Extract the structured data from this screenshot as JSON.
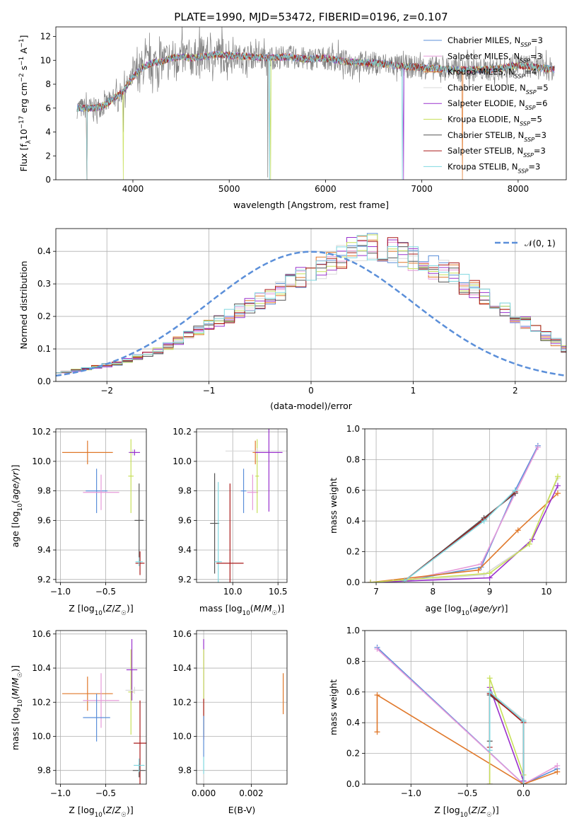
{
  "figure_title": "PLATE=1990, MJD=53472, FIBERID=0196, z=0.107",
  "colors": {
    "Chabrier MILES": "#5b8fd9",
    "Salpeter MILES": "#e69ad9",
    "Kroupa MILES": "#e0782a",
    "Chabrier ELODIE": "#d9d9d9",
    "Salpeter ELODIE": "#9a32cd",
    "Kroupa ELODIE": "#c8e05a",
    "Chabrier STELIB": "#555555",
    "Salpeter STELIB": "#aa1a1a",
    "Kroupa STELIB": "#7fd8e0",
    "data": "#7f7f7f",
    "gaussian": "#5b8fd9"
  },
  "chart_data": [
    {
      "id": "spectrum",
      "type": "line",
      "title": "PLATE=1990, MJD=53472, FIBERID=0196, z=0.107",
      "xlabel": "wavelength [Angstrom, rest frame]",
      "ylabel": "Flux [f_λ10^-17 erg cm^-2 s^-1 A^-1]",
      "xlim": [
        3200,
        8500
      ],
      "ylim": [
        0,
        12.8
      ],
      "xticks": [
        "4000",
        "5000",
        "6000",
        "7000",
        "8000"
      ],
      "yticks": [
        "0",
        "2",
        "4",
        "6",
        "8",
        "10",
        "12"
      ],
      "grid": false,
      "legend_position": "right",
      "continuum": {
        "wavelength": [
          3600,
          3700,
          3800,
          3900,
          4000,
          4100,
          4200,
          4300,
          4400,
          4500,
          4600,
          4700,
          4800,
          4900,
          5000,
          5200,
          5400,
          5600,
          5800,
          6000,
          6200,
          6400,
          6600,
          6800,
          7000,
          7200,
          7400,
          7600,
          7800,
          8000,
          8200,
          8400
        ],
        "flux": [
          6.0,
          6.2,
          6.8,
          7.4,
          8.6,
          9.4,
          9.8,
          9.9,
          10.2,
          10.3,
          10.2,
          10.3,
          10.4,
          10.5,
          10.4,
          10.3,
          10.2,
          10.3,
          10.1,
          10.2,
          9.9,
          9.8,
          9.7,
          9.5,
          9.4,
          9.3,
          9.2,
          9.2,
          9.3,
          9.6,
          9.4,
          9.2
        ]
      },
      "series": [
        {
          "name": "Chabrier MILES",
          "nssp": "3",
          "color": "#5b8fd9"
        },
        {
          "name": "Salpeter MILES",
          "nssp": "3",
          "color": "#e69ad9"
        },
        {
          "name": "Kroupa MILES",
          "nssp": "4",
          "color": "#e0782a"
        },
        {
          "name": "Chabrier ELODIE",
          "nssp": "5",
          "color": "#d9d9d9"
        },
        {
          "name": "Salpeter ELODIE",
          "nssp": "6",
          "color": "#9a32cd"
        },
        {
          "name": "Kroupa ELODIE",
          "nssp": "5",
          "color": "#c8e05a"
        },
        {
          "name": "Chabrier STELIB",
          "nssp": "3",
          "color": "#555555"
        },
        {
          "name": "Salpeter STELIB",
          "nssp": "3",
          "color": "#aa1a1a"
        },
        {
          "name": "Kroupa STELIB",
          "nssp": "3",
          "color": "#7fd8e0"
        }
      ]
    },
    {
      "id": "residuals",
      "type": "line",
      "xlabel": "(data-model)/error",
      "ylabel": "Normed distribution",
      "xlim": [
        -2.5,
        2.5
      ],
      "ylim": [
        0,
        0.47
      ],
      "xticks": [
        "−2",
        "−1",
        "0",
        "1",
        "2"
      ],
      "yticks": [
        "0.0",
        "0.1",
        "0.2",
        "0.3",
        "0.4"
      ],
      "grid": true,
      "legend": "𝒩(0, 1)",
      "legend_position": "top-right",
      "bins_from": -2.55,
      "bin_width": 0.1,
      "profile": [
        0.03,
        0.03,
        0.035,
        0.04,
        0.045,
        0.05,
        0.055,
        0.065,
        0.075,
        0.085,
        0.095,
        0.11,
        0.125,
        0.14,
        0.155,
        0.17,
        0.185,
        0.2,
        0.215,
        0.235,
        0.25,
        0.265,
        0.28,
        0.3,
        0.32,
        0.34,
        0.35,
        0.36,
        0.38,
        0.4,
        0.41,
        0.42,
        0.4,
        0.41,
        0.39,
        0.38,
        0.36,
        0.35,
        0.34,
        0.33,
        0.3,
        0.28,
        0.26,
        0.24,
        0.22,
        0.2,
        0.18,
        0.16,
        0.14,
        0.12,
        0.1,
        0.09,
        0.08,
        0.07,
        0.06,
        0.05,
        0.045,
        0.04,
        0.035,
        0.03,
        0.03
      ]
    },
    {
      "id": "age-vs-z",
      "type": "scatter",
      "xlabel": "Z [log10(Z/Z☉)]",
      "ylabel": "age  [log10(age/yr)]",
      "xlim": [
        -1.05,
        -0.05
      ],
      "ylim": [
        9.18,
        10.22
      ],
      "xticks": [
        "−1.0",
        "−0.5"
      ],
      "yticks": [
        "9.2",
        "9.4",
        "9.6",
        "9.8",
        "10.0",
        "10.2"
      ],
      "grid": true,
      "points": [
        {
          "series": "Kroupa MILES",
          "x": -0.7,
          "xerr": 0.28,
          "y": 10.06,
          "yerr": 0.08
        },
        {
          "series": "Chabrier MILES",
          "x": -0.6,
          "xerr": 0.12,
          "y": 9.8,
          "yerr": 0.15
        },
        {
          "series": "Salpeter MILES",
          "x": -0.55,
          "xerr": 0.2,
          "y": 9.79,
          "yerr": 0.12
        },
        {
          "series": "Kroupa ELODIE",
          "x": -0.22,
          "xerr": 0.03,
          "y": 9.9,
          "yerr": 0.25
        },
        {
          "series": "Chabrier ELODIE",
          "x": -0.2,
          "xerr": 0.05,
          "y": 10.06,
          "yerr": 0.02
        },
        {
          "series": "Salpeter ELODIE",
          "x": -0.18,
          "xerr": 0.06,
          "y": 10.06,
          "yerr": 0.02
        },
        {
          "series": "Chabrier STELIB",
          "x": -0.13,
          "xerr": 0.05,
          "y": 9.6,
          "yerr": 0.25
        },
        {
          "series": "Salpeter STELIB",
          "x": -0.12,
          "xerr": 0.05,
          "y": 9.31,
          "yerr": 0.08
        },
        {
          "series": "Kroupa STELIB",
          "x": -0.13,
          "xerr": 0.04,
          "y": 9.32,
          "yerr": 0.03
        }
      ]
    },
    {
      "id": "age-vs-mass",
      "type": "scatter",
      "xlabel": "mass [log10(M/M☉)]",
      "ylabel": "",
      "xlim": [
        9.6,
        10.6
      ],
      "ylim": [
        9.18,
        10.22
      ],
      "xticks": [
        "10.0",
        "10.5"
      ],
      "yticks": [
        "9.2",
        "9.4",
        "9.6",
        "9.8",
        "10.0",
        "10.2"
      ],
      "grid": true,
      "points": [
        {
          "series": "Chabrier STELIB",
          "x": 9.8,
          "xerr": 0.05,
          "y": 9.58,
          "yerr": 0.34
        },
        {
          "series": "Kroupa STELIB",
          "x": 9.84,
          "xerr": 0.04,
          "y": 9.32,
          "yerr": 0.54
        },
        {
          "series": "Salpeter STELIB",
          "x": 9.97,
          "xerr": 0.15,
          "y": 9.31,
          "yerr": 0.54
        },
        {
          "series": "Chabrier MILES",
          "x": 10.12,
          "xerr": 0.03,
          "y": 9.8,
          "yerr": 0.15
        },
        {
          "series": "Salpeter MILES",
          "x": 10.22,
          "xerr": 0.06,
          "y": 9.79,
          "yerr": 0.12
        },
        {
          "series": "Kroupa MILES",
          "x": 10.25,
          "xerr": 0.03,
          "y": 10.06,
          "yerr": 0.08
        },
        {
          "series": "Kroupa ELODIE",
          "x": 10.27,
          "xerr": 0.02,
          "y": 9.9,
          "yerr": 0.25
        },
        {
          "series": "Chabrier ELODIE",
          "x": 10.27,
          "xerr": 0.35,
          "y": 10.07,
          "yerr": 0.02
        },
        {
          "series": "Salpeter ELODIE",
          "x": 10.4,
          "xerr": 0.15,
          "y": 10.06,
          "yerr": 0.4
        }
      ]
    },
    {
      "id": "weight-vs-age",
      "type": "line",
      "xlabel": "age  [log10(age/yr)]",
      "ylabel": "mass weight",
      "xlim": [
        6.8,
        10.35
      ],
      "ylim": [
        0,
        1
      ],
      "xticks": [
        "7",
        "8",
        "9",
        "10"
      ],
      "yticks": [
        "0.0",
        "0.2",
        "0.4",
        "0.6",
        "0.8",
        "1.0"
      ],
      "grid": true,
      "series": [
        {
          "name": "Chabrier MILES",
          "x": [
            7.5,
            8.85,
            9.45,
            9.85
          ],
          "y": [
            0.01,
            0.1,
            0.6,
            0.89
          ]
        },
        {
          "name": "Salpeter MILES",
          "x": [
            7.5,
            8.85,
            9.45,
            9.85
          ],
          "y": [
            0.01,
            0.12,
            0.58,
            0.88
          ]
        },
        {
          "name": "Kroupa MILES",
          "x": [
            6.9,
            8.8,
            9.5,
            10.2
          ],
          "y": [
            0.0,
            0.08,
            0.34,
            0.58
          ]
        },
        {
          "name": "Chabrier ELODIE",
          "x": [
            7.3,
            8.9,
            9.7,
            10.2
          ],
          "y": [
            0.0,
            0.05,
            0.25,
            0.68
          ]
        },
        {
          "name": "Salpeter ELODIE",
          "x": [
            6.9,
            9.0,
            9.75,
            10.2
          ],
          "y": [
            0.0,
            0.03,
            0.28,
            0.63
          ]
        },
        {
          "name": "Kroupa ELODIE",
          "x": [
            6.9,
            9.0,
            9.7,
            10.2
          ],
          "y": [
            0.0,
            0.06,
            0.25,
            0.69
          ]
        },
        {
          "name": "Chabrier STELIB",
          "x": [
            7.5,
            8.9,
            9.45
          ],
          "y": [
            0.01,
            0.42,
            0.58
          ]
        },
        {
          "name": "Salpeter STELIB",
          "x": [
            7.5,
            8.9,
            9.45
          ],
          "y": [
            0.01,
            0.41,
            0.59
          ]
        },
        {
          "name": "Kroupa STELIB",
          "x": [
            7.5,
            8.9,
            9.45
          ],
          "y": [
            0.01,
            0.4,
            0.6
          ]
        }
      ]
    },
    {
      "id": "mass-vs-z",
      "type": "scatter",
      "xlabel": "Z [log10(Z/Z☉)]",
      "ylabel": "mass [log10(M/M☉)]",
      "xlim": [
        -1.05,
        -0.05
      ],
      "ylim": [
        9.72,
        10.62
      ],
      "xticks": [
        "−1.0",
        "−0.5"
      ],
      "yticks": [
        "9.8",
        "10.0",
        "10.2",
        "10.4",
        "10.6"
      ],
      "grid": true,
      "points": [
        {
          "series": "Kroupa MILES",
          "x": -0.7,
          "xerr": 0.28,
          "y": 10.25,
          "yerr": 0.1
        },
        {
          "series": "Salpeter MILES",
          "x": -0.55,
          "xerr": 0.2,
          "y": 10.21,
          "yerr": 0.16
        },
        {
          "series": "Chabrier MILES",
          "x": -0.6,
          "xerr": 0.15,
          "y": 10.11,
          "yerr": 0.14
        },
        {
          "series": "Kroupa ELODIE",
          "x": -0.22,
          "xerr": 0.03,
          "y": 10.26,
          "yerr": 0.25
        },
        {
          "series": "Salpeter ELODIE",
          "x": -0.21,
          "xerr": 0.06,
          "y": 10.39,
          "yerr": 0.18
        },
        {
          "series": "Chabrier ELODIE",
          "x": -0.18,
          "xerr": 0.1,
          "y": 10.27,
          "yerr": 0.02
        },
        {
          "series": "Salpeter STELIB",
          "x": -0.12,
          "xerr": 0.07,
          "y": 9.96,
          "yerr": 0.25
        },
        {
          "series": "Chabrier STELIB",
          "x": -0.13,
          "xerr": 0.07,
          "y": 9.8,
          "yerr": 0.04
        },
        {
          "series": "Kroupa STELIB",
          "x": -0.13,
          "xerr": 0.06,
          "y": 9.83,
          "yerr": 0.04
        }
      ]
    },
    {
      "id": "mass-vs-ebv",
      "type": "scatter",
      "xlabel": "E(B-V)",
      "ylabel": "",
      "xlim": [
        -0.0003,
        0.0035
      ],
      "ylim": [
        9.72,
        10.62
      ],
      "xticks": [
        "0.000",
        "0.002"
      ],
      "yticks": [
        "9.8",
        "10.0",
        "10.2",
        "10.4",
        "10.6"
      ],
      "grid": true,
      "points": [
        {
          "series": "Salpeter ELODIE",
          "x": 0.0,
          "xerr": 0.0,
          "y": 10.39,
          "yerr": 0.18
        },
        {
          "series": "Kroupa ELODIE",
          "x": 0.0,
          "xerr": 0.0,
          "y": 10.26,
          "yerr": 0.25
        },
        {
          "series": "Salpeter STELIB",
          "x": 0.0,
          "xerr": 0.0,
          "y": 10.1,
          "yerr": 0.12
        },
        {
          "series": "Chabrier MILES",
          "x": 0.0,
          "xerr": 0.0,
          "y": 10.0,
          "yerr": 0.12
        },
        {
          "series": "Kroupa STELIB",
          "x": 0.0,
          "xerr": 0.0,
          "y": 9.83,
          "yerr": 0.05
        },
        {
          "series": "Kroupa MILES",
          "x": 0.00334,
          "xerr": 0.0,
          "y": 10.25,
          "yerr": 0.12
        }
      ]
    },
    {
      "id": "weight-vs-z",
      "type": "line",
      "xlabel": "Z [log10(Z/Z☉)]",
      "ylabel": "mass weight",
      "xlim": [
        -1.41,
        0.38
      ],
      "ylim": [
        0,
        1
      ],
      "xticks": [
        "−1.0",
        "−0.5",
        "0.0"
      ],
      "yticks": [
        "0.0",
        "0.2",
        "0.4",
        "0.6",
        "0.8",
        "1.0"
      ],
      "grid": true,
      "series": [
        {
          "name": "Chabrier MILES",
          "x": [
            -1.3,
            0.0,
            0.3
          ],
          "y": [
            0.89,
            0.0,
            0.1
          ]
        },
        {
          "name": "Salpeter MILES",
          "x": [
            -1.3,
            0.0,
            0.3
          ],
          "y": [
            0.88,
            0.0,
            0.12
          ]
        },
        {
          "name": "Kroupa MILES",
          "x": [
            -1.3,
            -1.3,
            0.0,
            0.3
          ],
          "y": [
            0.34,
            0.58,
            0.0,
            0.08
          ]
        },
        {
          "name": "Chabrier ELODIE",
          "x": [
            -0.3,
            -0.3,
            0.0,
            0.0
          ],
          "y": [
            0.0,
            0.6,
            0.42,
            0.0
          ]
        },
        {
          "name": "Salpeter ELODIE",
          "x": [
            -0.3,
            -0.3,
            0.0,
            0.0
          ],
          "y": [
            0.0,
            0.63,
            0.02,
            0.0
          ]
        },
        {
          "name": "Kroupa ELODIE",
          "x": [
            -0.3,
            -0.3,
            0.0,
            0.0
          ],
          "y": [
            0.0,
            0.69,
            0.06,
            0.0
          ]
        },
        {
          "name": "Chabrier STELIB",
          "x": [
            -0.3,
            -0.3,
            0.0,
            0.0
          ],
          "y": [
            0.28,
            0.58,
            0.41,
            0.0
          ]
        },
        {
          "name": "Salpeter STELIB",
          "x": [
            -0.3,
            -0.3,
            0.0,
            0.0
          ],
          "y": [
            0.24,
            0.59,
            0.4,
            0.0
          ]
        },
        {
          "name": "Kroupa STELIB",
          "x": [
            -0.3,
            -0.3,
            0.0,
            0.0
          ],
          "y": [
            0.22,
            0.6,
            0.41,
            0.0
          ]
        }
      ]
    }
  ]
}
